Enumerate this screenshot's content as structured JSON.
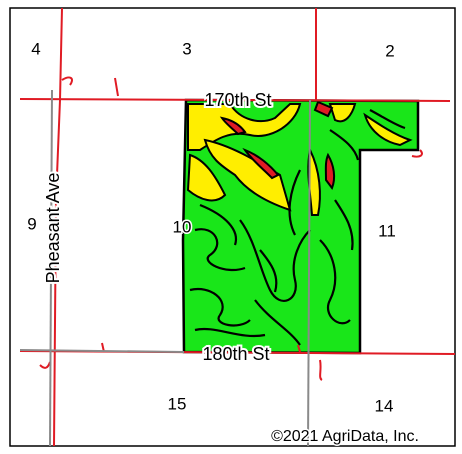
{
  "sections": [
    "4",
    "3",
    "2",
    "9",
    "10",
    "11",
    "15",
    "14"
  ],
  "roads": [
    "170th St",
    "180th St",
    "Pheasant Ave"
  ],
  "copyright": "©2021 AgriData, Inc."
}
